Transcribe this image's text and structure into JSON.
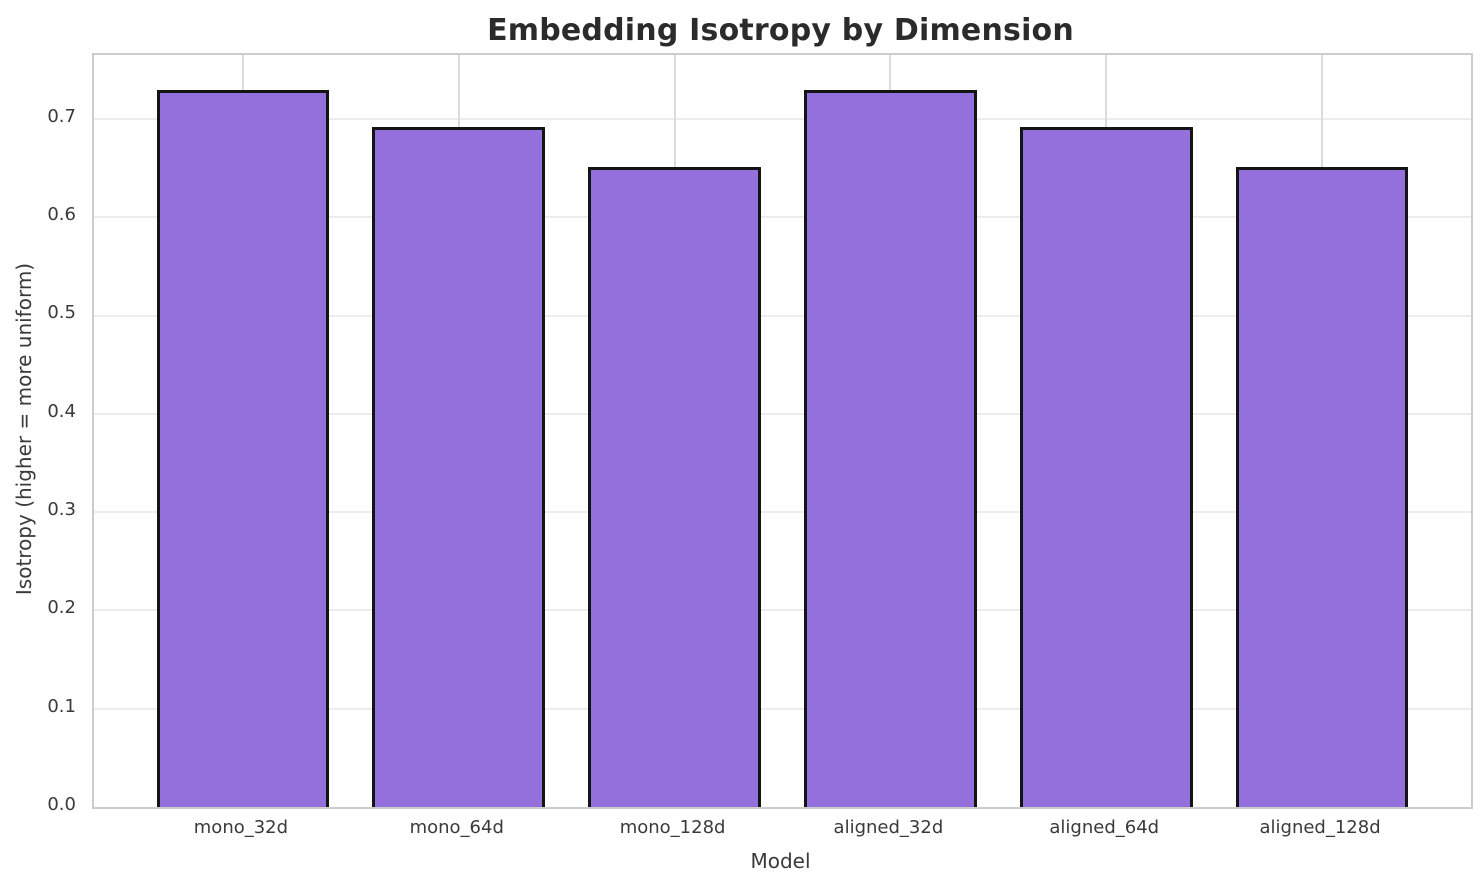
{
  "chart_data": {
    "type": "bar",
    "title": "Embedding Isotropy by Dimension",
    "xlabel": "Model",
    "ylabel": "Isotropy (higher = more uniform)",
    "categories": [
      "mono_32d",
      "mono_64d",
      "mono_128d",
      "aligned_32d",
      "aligned_64d",
      "aligned_128d"
    ],
    "values": [
      0.729,
      0.692,
      0.651,
      0.729,
      0.692,
      0.651
    ],
    "ylim": [
      0,
      0.765
    ],
    "yticks": [
      0.0,
      0.1,
      0.2,
      0.3,
      0.4,
      0.5,
      0.6,
      0.7
    ],
    "ytick_labels": [
      "0.0",
      "0.1",
      "0.2",
      "0.3",
      "0.4",
      "0.5",
      "0.6",
      "0.7"
    ],
    "grid": true,
    "legend_position": "none",
    "bar_color": "#9370DB",
    "bar_edge_color": "#141414",
    "grid_color": "#ececec",
    "spine_color": "#cccccc",
    "title_color": "#2b2b2b",
    "tick_label_color": "#3a3a3a"
  }
}
